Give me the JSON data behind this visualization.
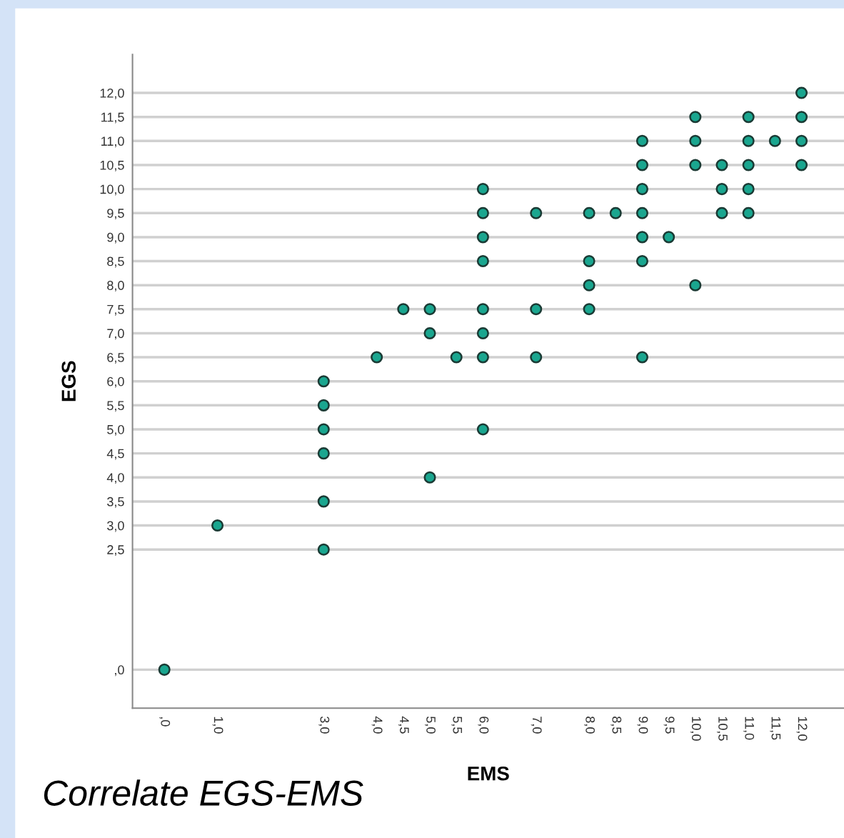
{
  "chart_data": {
    "type": "scatter",
    "xlabel": "EMS",
    "ylabel": "EGS",
    "annotations": [
      "Correlate EGS-EMS"
    ],
    "grid": "y",
    "marker": "circle",
    "xlim": [
      -0.6,
      12.8
    ],
    "ylim": [
      -0.8,
      12.8
    ],
    "xticks": [
      {
        "value": 0,
        "label": ",0"
      },
      {
        "value": 1,
        "label": "1,0"
      },
      {
        "value": 3,
        "label": "3,0"
      },
      {
        "value": 4,
        "label": "4,0"
      },
      {
        "value": 4.5,
        "label": "4,5"
      },
      {
        "value": 5,
        "label": "5,0"
      },
      {
        "value": 5.5,
        "label": "5,5"
      },
      {
        "value": 6,
        "label": "6,0"
      },
      {
        "value": 7,
        "label": "7,0"
      },
      {
        "value": 8,
        "label": "8,0"
      },
      {
        "value": 8.5,
        "label": "8,5"
      },
      {
        "value": 9,
        "label": "9,0"
      },
      {
        "value": 9.5,
        "label": "9,5"
      },
      {
        "value": 10,
        "label": "10,0"
      },
      {
        "value": 10.5,
        "label": "10,5"
      },
      {
        "value": 11,
        "label": "11,0"
      },
      {
        "value": 11.5,
        "label": "11,5"
      },
      {
        "value": 12,
        "label": "12,0"
      }
    ],
    "yticks": [
      {
        "value": 0,
        "label": ",0"
      },
      {
        "value": 2.5,
        "label": "2,5"
      },
      {
        "value": 3,
        "label": "3,0"
      },
      {
        "value": 3.5,
        "label": "3,5"
      },
      {
        "value": 4,
        "label": "4,0"
      },
      {
        "value": 4.5,
        "label": "4,5"
      },
      {
        "value": 5,
        "label": "5,0"
      },
      {
        "value": 5.5,
        "label": "5,5"
      },
      {
        "value": 6,
        "label": "6,0"
      },
      {
        "value": 6.5,
        "label": "6,5"
      },
      {
        "value": 7,
        "label": "7,0"
      },
      {
        "value": 7.5,
        "label": "7,5"
      },
      {
        "value": 8,
        "label": "8,0"
      },
      {
        "value": 8.5,
        "label": "8,5"
      },
      {
        "value": 9,
        "label": "9,0"
      },
      {
        "value": 9.5,
        "label": "9,5"
      },
      {
        "value": 10,
        "label": "10,0"
      },
      {
        "value": 10.5,
        "label": "10,5"
      },
      {
        "value": 11,
        "label": "11,0"
      },
      {
        "value": 11.5,
        "label": "11,5"
      },
      {
        "value": 12,
        "label": "12,0"
      }
    ],
    "series": [
      {
        "color": "#1aa68f",
        "x": [
          0,
          1,
          3,
          3,
          3,
          3,
          3,
          3,
          4,
          4.5,
          5,
          5,
          5,
          5.5,
          6,
          6,
          6,
          6,
          6,
          6,
          6,
          6,
          7,
          7,
          7,
          8,
          8,
          8,
          8,
          8.5,
          9,
          9,
          9,
          9,
          9,
          9,
          9,
          9.5,
          10,
          10,
          10,
          10,
          10.5,
          10.5,
          10.5,
          11,
          11,
          11,
          11,
          11,
          11.5,
          12,
          12,
          12,
          12
        ],
        "values": [
          0,
          3,
          2.5,
          3.5,
          4.5,
          5,
          5.5,
          6,
          6.5,
          7.5,
          4,
          7,
          7.5,
          6.5,
          5,
          6.5,
          7,
          7.5,
          8.5,
          9,
          9.5,
          10,
          6.5,
          7.5,
          9.5,
          7.5,
          8,
          8.5,
          9.5,
          9.5,
          6.5,
          8.5,
          9,
          9.5,
          10,
          10.5,
          11,
          9,
          8,
          10.5,
          11,
          11.5,
          9.5,
          10,
          10.5,
          9.5,
          10,
          10.5,
          11,
          11.5,
          11,
          10.5,
          11,
          11.5,
          12
        ]
      }
    ]
  }
}
